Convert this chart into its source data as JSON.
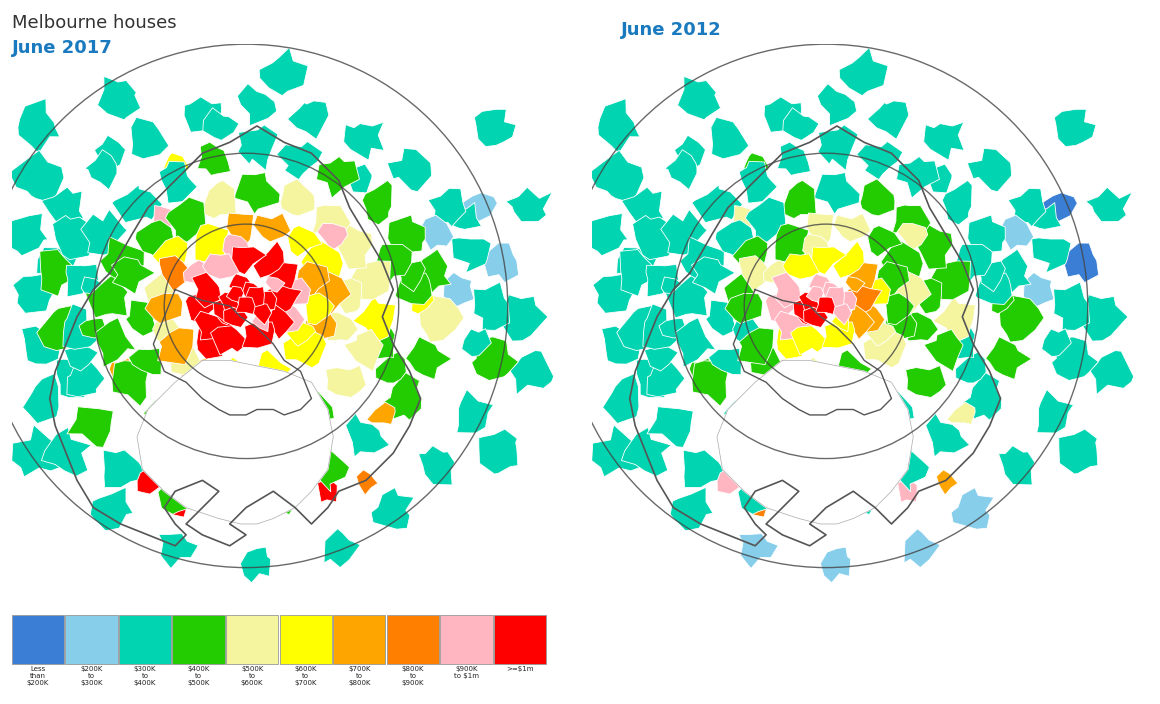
{
  "title": "Melbourne houses",
  "subtitle_left": "June 2017",
  "subtitle_right": "June 2012",
  "subtitle_color": "#1a7abf",
  "title_color": "#333333",
  "background_color": "#ffffff",
  "legend_colors": [
    "#3a7fd5",
    "#87ceeb",
    "#00d4b0",
    "#22cc00",
    "#f5f5a0",
    "#ffff00",
    "#ffa500",
    "#ff8000",
    "#ffb6c1",
    "#ff0000"
  ],
  "legend_labels": [
    "Less\nthan\n$200K",
    "$200K\nto\n$300K",
    "$300K\nto\n$400K",
    "$400K\nto\n$500K",
    "$500K\nto\n$600K",
    "$600K\nto\n$700K",
    "$700K\nto\n$800K",
    "$800K\nto\n$900K",
    "$900K\nto $1m",
    ">=$1m"
  ],
  "figsize": [
    11.6,
    7.04
  ],
  "dpi": 100,
  "map_white": "#ffffff",
  "border_color": "#555555",
  "circle_color": "#444444"
}
